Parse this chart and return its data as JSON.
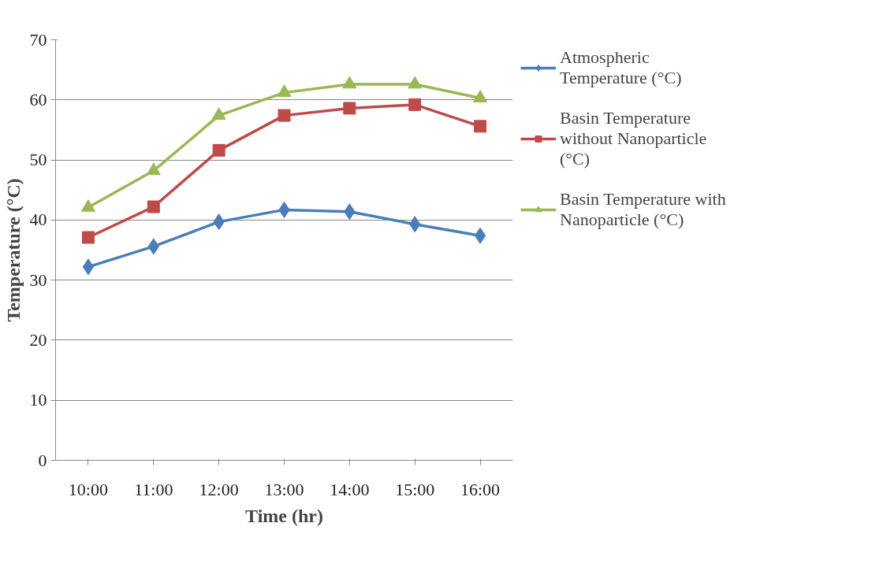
{
  "chart_data": {
    "type": "line",
    "xlabel": "Time (hr)",
    "ylabel": "Temperature (°C)",
    "categories": [
      "10:00",
      "11:00",
      "12:00",
      "13:00",
      "14:00",
      "15:00",
      "16:00"
    ],
    "ylim": [
      0,
      70
    ],
    "yticks": [
      0,
      10,
      20,
      30,
      40,
      50,
      60,
      70
    ],
    "grid": "y",
    "legend": "right",
    "line_style": "solid",
    "series": [
      {
        "name": "Atmospheric Temperature (°C)",
        "color": "#4a7ebb",
        "marker": "diamond",
        "values": [
          32.2,
          35.6,
          39.7,
          41.7,
          41.4,
          39.3,
          37.4
        ]
      },
      {
        "name": "Basin Temperature without Nanoparticle (°C)",
        "color": "#be4b48",
        "marker": "square",
        "values": [
          37.1,
          42.2,
          51.6,
          57.4,
          58.6,
          59.2,
          55.6
        ]
      },
      {
        "name": "Basin Temperature with Nanoparticle (°C)",
        "color": "#98b954",
        "marker": "triangle",
        "values": [
          42.1,
          48.2,
          57.4,
          61.2,
          62.6,
          62.6,
          60.3
        ]
      }
    ]
  }
}
